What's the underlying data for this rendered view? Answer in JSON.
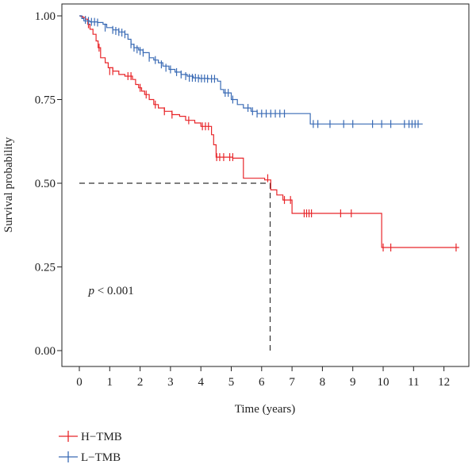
{
  "chart_data": {
    "type": "line",
    "subtype": "kaplan-meier",
    "xlabel": "Time (years)",
    "ylabel": "Survival probability",
    "xlim": [
      -0.6,
      13.2
    ],
    "ylim": [
      0,
      1
    ],
    "xticks": [
      0,
      1,
      2,
      3,
      4,
      5,
      6,
      7,
      8,
      9,
      10,
      11,
      12
    ],
    "xtick_labels": [
      "0",
      "1",
      "2",
      "3",
      "4",
      "5",
      "6",
      "7",
      "8",
      "9",
      "10",
      "11",
      "12"
    ],
    "yticks": [
      0,
      0.25,
      0.5,
      0.75,
      1.0
    ],
    "ytick_labels": [
      "0.00",
      "0.25",
      "0.50",
      "0.75",
      "1.00"
    ],
    "grid": false,
    "annotation": {
      "p_symbol": "p",
      "p_rest": " < 0.001",
      "x": 0.3,
      "y": 0.18
    },
    "median_line": {
      "y": 0.5,
      "x": 6.28
    },
    "legend": {
      "position": "bottom-left",
      "entries": [
        {
          "label": "H−TMB",
          "color": "#e8262a"
        },
        {
          "label": "L−TMB",
          "color": "#3a6bb5"
        }
      ]
    },
    "series": [
      {
        "name": "H−TMB",
        "color": "#e8262a",
        "steps": [
          [
            0,
            1.0
          ],
          [
            0.05,
            0.998
          ],
          [
            0.12,
            0.995
          ],
          [
            0.2,
            0.99
          ],
          [
            0.28,
            0.975
          ],
          [
            0.35,
            0.96
          ],
          [
            0.45,
            0.945
          ],
          [
            0.55,
            0.925
          ],
          [
            0.62,
            0.905
          ],
          [
            0.7,
            0.875
          ],
          [
            0.85,
            0.86
          ],
          [
            0.95,
            0.845
          ],
          [
            1.1,
            0.835
          ],
          [
            1.3,
            0.825
          ],
          [
            1.5,
            0.82
          ],
          [
            1.75,
            0.81
          ],
          [
            1.85,
            0.795
          ],
          [
            1.95,
            0.785
          ],
          [
            2.05,
            0.775
          ],
          [
            2.15,
            0.765
          ],
          [
            2.3,
            0.75
          ],
          [
            2.45,
            0.735
          ],
          [
            2.6,
            0.725
          ],
          [
            2.8,
            0.715
          ],
          [
            3.05,
            0.705
          ],
          [
            3.3,
            0.7
          ],
          [
            3.5,
            0.688
          ],
          [
            3.8,
            0.68
          ],
          [
            4.0,
            0.67
          ],
          [
            4.35,
            0.645
          ],
          [
            4.42,
            0.615
          ],
          [
            4.5,
            0.578
          ],
          [
            5.05,
            0.575
          ],
          [
            5.4,
            0.515
          ],
          [
            6.1,
            0.51
          ],
          [
            6.3,
            0.48
          ],
          [
            6.5,
            0.465
          ],
          [
            6.7,
            0.45
          ],
          [
            7.0,
            0.41
          ],
          [
            9.95,
            0.308
          ],
          [
            12.5,
            0.308
          ]
        ],
        "censor": [
          [
            0.3,
            0.975
          ],
          [
            0.65,
            0.905
          ],
          [
            1.0,
            0.835
          ],
          [
            1.1,
            0.835
          ],
          [
            1.6,
            0.82
          ],
          [
            1.7,
            0.82
          ],
          [
            2.0,
            0.785
          ],
          [
            2.2,
            0.765
          ],
          [
            2.5,
            0.735
          ],
          [
            2.8,
            0.715
          ],
          [
            3.05,
            0.705
          ],
          [
            3.6,
            0.688
          ],
          [
            4.05,
            0.67
          ],
          [
            4.15,
            0.67
          ],
          [
            4.25,
            0.67
          ],
          [
            4.52,
            0.578
          ],
          [
            4.62,
            0.578
          ],
          [
            4.75,
            0.578
          ],
          [
            4.95,
            0.578
          ],
          [
            5.05,
            0.578
          ],
          [
            6.2,
            0.515
          ],
          [
            6.75,
            0.45
          ],
          [
            6.95,
            0.45
          ],
          [
            7.4,
            0.41
          ],
          [
            7.48,
            0.41
          ],
          [
            7.56,
            0.41
          ],
          [
            7.64,
            0.41
          ],
          [
            8.6,
            0.41
          ],
          [
            8.95,
            0.41
          ],
          [
            10.0,
            0.308
          ],
          [
            10.25,
            0.308
          ],
          [
            12.4,
            0.308
          ]
        ]
      },
      {
        "name": "L−TMB",
        "color": "#3a6bb5",
        "steps": [
          [
            0,
            1.0
          ],
          [
            0.08,
            0.992
          ],
          [
            0.15,
            0.985
          ],
          [
            0.35,
            0.982
          ],
          [
            0.6,
            0.98
          ],
          [
            0.78,
            0.975
          ],
          [
            0.9,
            0.965
          ],
          [
            1.1,
            0.958
          ],
          [
            1.3,
            0.952
          ],
          [
            1.5,
            0.945
          ],
          [
            1.6,
            0.93
          ],
          [
            1.7,
            0.915
          ],
          [
            1.8,
            0.905
          ],
          [
            1.95,
            0.898
          ],
          [
            2.1,
            0.89
          ],
          [
            2.3,
            0.875
          ],
          [
            2.45,
            0.868
          ],
          [
            2.6,
            0.86
          ],
          [
            2.75,
            0.85
          ],
          [
            2.95,
            0.84
          ],
          [
            3.15,
            0.832
          ],
          [
            3.35,
            0.825
          ],
          [
            3.55,
            0.82
          ],
          [
            3.75,
            0.815
          ],
          [
            3.95,
            0.813
          ],
          [
            4.25,
            0.812
          ],
          [
            4.55,
            0.805
          ],
          [
            4.65,
            0.78
          ],
          [
            4.75,
            0.77
          ],
          [
            5.0,
            0.75
          ],
          [
            5.2,
            0.735
          ],
          [
            5.4,
            0.725
          ],
          [
            5.65,
            0.715
          ],
          [
            5.85,
            0.708
          ],
          [
            6.15,
            0.708
          ],
          [
            7.6,
            0.677
          ],
          [
            11.3,
            0.677
          ]
        ],
        "censor": [
          [
            0.2,
            0.988
          ],
          [
            0.3,
            0.985
          ],
          [
            0.4,
            0.982
          ],
          [
            0.5,
            0.982
          ],
          [
            0.6,
            0.98
          ],
          [
            0.85,
            0.965
          ],
          [
            1.1,
            0.958
          ],
          [
            1.2,
            0.955
          ],
          [
            1.3,
            0.952
          ],
          [
            1.4,
            0.95
          ],
          [
            1.5,
            0.945
          ],
          [
            1.7,
            0.915
          ],
          [
            1.8,
            0.905
          ],
          [
            1.9,
            0.9
          ],
          [
            2.0,
            0.895
          ],
          [
            2.1,
            0.89
          ],
          [
            2.3,
            0.875
          ],
          [
            2.5,
            0.868
          ],
          [
            2.7,
            0.855
          ],
          [
            2.85,
            0.845
          ],
          [
            3.0,
            0.84
          ],
          [
            3.2,
            0.832
          ],
          [
            3.35,
            0.825
          ],
          [
            3.5,
            0.82
          ],
          [
            3.62,
            0.815
          ],
          [
            3.72,
            0.815
          ],
          [
            3.82,
            0.815
          ],
          [
            3.92,
            0.813
          ],
          [
            4.02,
            0.813
          ],
          [
            4.12,
            0.813
          ],
          [
            4.22,
            0.812
          ],
          [
            4.35,
            0.812
          ],
          [
            4.45,
            0.812
          ],
          [
            4.8,
            0.77
          ],
          [
            4.9,
            0.77
          ],
          [
            5.05,
            0.75
          ],
          [
            5.55,
            0.725
          ],
          [
            5.7,
            0.715
          ],
          [
            5.85,
            0.708
          ],
          [
            6.0,
            0.708
          ],
          [
            6.15,
            0.708
          ],
          [
            6.3,
            0.708
          ],
          [
            6.45,
            0.708
          ],
          [
            6.6,
            0.708
          ],
          [
            6.75,
            0.708
          ],
          [
            7.7,
            0.677
          ],
          [
            7.85,
            0.677
          ],
          [
            8.25,
            0.677
          ],
          [
            8.7,
            0.677
          ],
          [
            9.0,
            0.677
          ],
          [
            9.65,
            0.677
          ],
          [
            9.95,
            0.677
          ],
          [
            10.25,
            0.677
          ],
          [
            10.7,
            0.677
          ],
          [
            10.85,
            0.677
          ],
          [
            10.95,
            0.677
          ],
          [
            11.05,
            0.677
          ],
          [
            11.15,
            0.677
          ]
        ]
      }
    ]
  }
}
